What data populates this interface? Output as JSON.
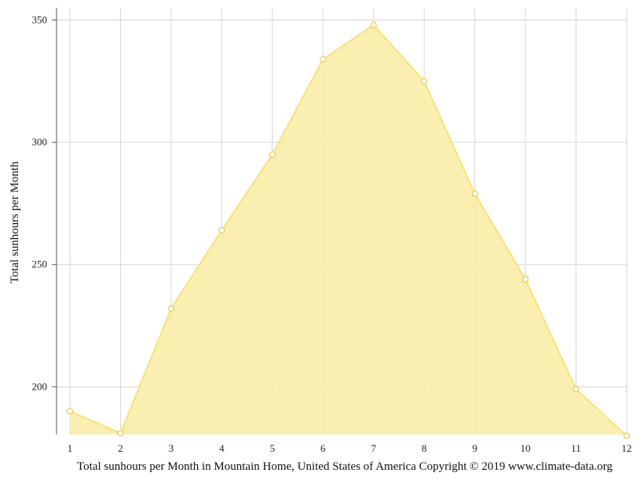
{
  "chart_data": {
    "type": "area",
    "x": [
      "1",
      "2",
      "3",
      "4",
      "5",
      "6",
      "7",
      "8",
      "9",
      "10",
      "11",
      "12"
    ],
    "values": [
      190,
      181,
      232,
      264,
      295,
      334,
      348,
      325,
      279,
      244,
      199,
      180
    ],
    "ylabel": "Total sunhours per Month",
    "caption": "Total sunhours per Month in Mountain Home, United States of America Copyright © 2019 www.climate-data.org",
    "yticks": [
      200,
      250,
      300,
      350
    ],
    "ylim": [
      180.5,
      355
    ],
    "grid": true,
    "colors": {
      "fill": "#f9eca8",
      "line": "#f6e27a",
      "marker_fill": "#ffffff",
      "marker_stroke": "#e8c94a",
      "grid": "#d6d6d6",
      "axis": "#555555"
    }
  }
}
